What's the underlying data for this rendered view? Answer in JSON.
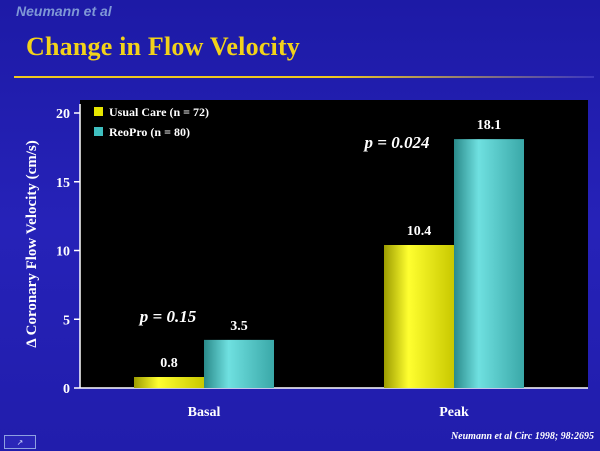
{
  "header": {
    "author": "Neumann et al",
    "title": "Change in Flow Velocity"
  },
  "footer": {
    "reference": "Neumann et al Circ 1998; 98:2695"
  },
  "nav_icon": "slide-navigation-icon",
  "chart_data": {
    "type": "bar",
    "categories": [
      "Basal",
      "Peak"
    ],
    "series": [
      {
        "name": "Usual Care (n = 72)",
        "values": [
          0.8,
          10.4
        ],
        "color": "#e6e600"
      },
      {
        "name": "ReoPro (n = 80)",
        "values": [
          3.5,
          18.1
        ],
        "color": "#3fbfbf"
      }
    ],
    "ylabel": "Δ Coronary Flow Velocity (cm/s)",
    "xlabel": "",
    "ylim": [
      0,
      20
    ],
    "yticks": [
      0,
      5,
      10,
      15,
      20
    ],
    "data_labels": [
      "0.8",
      "3.5",
      "10.4",
      "18.1"
    ],
    "annotations": [
      "p = 0.15",
      "p = 0.024"
    ],
    "legend_position": "top-left",
    "plot_background": "#000000",
    "grid": false
  }
}
